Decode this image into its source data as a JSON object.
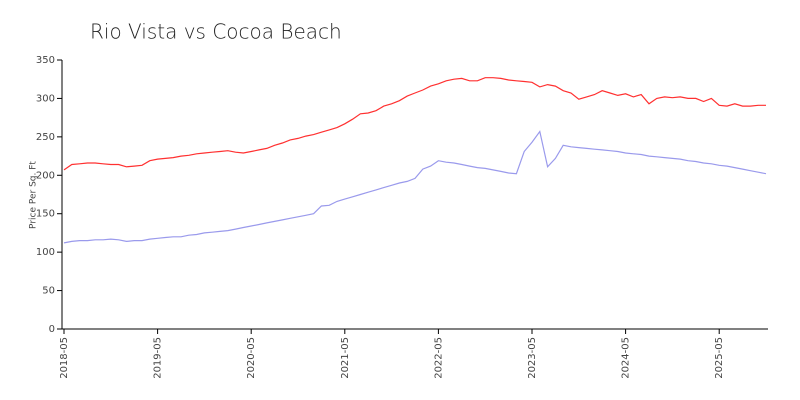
{
  "chart_data": {
    "type": "line",
    "title": "Rio Vista vs Cocoa Beach",
    "y_label": "Price Per Sq. Ft",
    "x": [
      "2018-05",
      "2018-06",
      "2018-07",
      "2018-08",
      "2018-09",
      "2018-10",
      "2018-11",
      "2018-12",
      "2019-01",
      "2019-02",
      "2019-03",
      "2019-04",
      "2019-05",
      "2019-06",
      "2019-07",
      "2019-08",
      "2019-09",
      "2019-10",
      "2019-11",
      "2019-12",
      "2020-01",
      "2020-02",
      "2020-03",
      "2020-04",
      "2020-05",
      "2020-06",
      "2020-07",
      "2020-08",
      "2020-09",
      "2020-10",
      "2020-11",
      "2020-12",
      "2021-01",
      "2021-02",
      "2021-03",
      "2021-04",
      "2021-05",
      "2021-06",
      "2021-07",
      "2021-08",
      "2021-09",
      "2021-10",
      "2021-11",
      "2021-12",
      "2022-01",
      "2022-02",
      "2022-03",
      "2022-04",
      "2022-05",
      "2022-06",
      "2022-07",
      "2022-08",
      "2022-09",
      "2022-10",
      "2022-11",
      "2022-12",
      "2023-01",
      "2023-02",
      "2023-03",
      "2023-04",
      "2023-05",
      "2023-06",
      "2023-07",
      "2023-08",
      "2023-09",
      "2023-10",
      "2023-11",
      "2023-12",
      "2024-01",
      "2024-02",
      "2024-03",
      "2024-04",
      "2024-05",
      "2024-06",
      "2024-07",
      "2024-08",
      "2024-09",
      "2024-10",
      "2024-11",
      "2024-12",
      "2025-01",
      "2025-02",
      "2025-03",
      "2025-04",
      "2025-05",
      "2025-06",
      "2025-07",
      "2025-08",
      "2025-09",
      "2025-10",
      "2025-11"
    ],
    "series": [
      {
        "color": "#ff3030",
        "values": [
          207,
          214,
          215,
          216,
          216,
          215,
          214,
          214,
          211,
          212,
          213,
          219,
          221,
          222,
          223,
          225,
          226,
          228,
          229,
          230,
          231,
          232,
          230,
          229,
          231,
          233,
          235,
          239,
          242,
          246,
          248,
          251,
          253,
          256,
          259,
          262,
          267,
          273,
          280,
          281,
          284,
          290,
          293,
          297,
          303,
          307,
          311,
          316,
          319,
          323,
          325,
          326,
          323,
          323,
          327,
          327,
          326,
          324,
          323,
          322,
          321,
          315,
          318,
          316,
          310,
          307,
          299,
          302,
          305,
          310,
          307,
          304,
          306,
          302,
          305,
          293,
          300,
          302,
          301,
          302,
          300,
          300,
          296,
          300,
          291,
          290,
          293,
          290,
          290,
          291,
          291
        ]
      },
      {
        "color": "#9a9aec",
        "values": [
          112,
          114,
          115,
          115,
          116,
          116,
          117,
          116,
          114,
          115,
          115,
          117,
          118,
          119,
          120,
          120,
          122,
          123,
          125,
          126,
          127,
          128,
          130,
          132,
          134,
          136,
          138,
          140,
          142,
          144,
          146,
          148,
          150,
          160,
          161,
          166,
          169,
          172,
          175,
          178,
          181,
          184,
          187,
          190,
          192,
          196,
          208,
          212,
          219,
          217,
          216,
          214,
          212,
          210,
          209,
          207,
          205,
          203,
          202,
          231,
          243,
          257,
          211,
          222,
          239,
          237,
          236,
          235,
          234,
          233,
          232,
          231,
          229,
          228,
          227,
          225,
          224,
          223,
          222,
          221,
          219,
          218,
          216,
          215,
          213,
          212,
          210,
          208,
          206,
          204,
          202
        ]
      }
    ],
    "ylim": [
      0,
      350
    ],
    "yticks": [
      0,
      50,
      100,
      150,
      200,
      250,
      300,
      350
    ],
    "xticks": [
      "2018-05",
      "2019-05",
      "2020-05",
      "2021-05",
      "2022-05",
      "2023-05",
      "2024-05",
      "2025-05"
    ]
  }
}
